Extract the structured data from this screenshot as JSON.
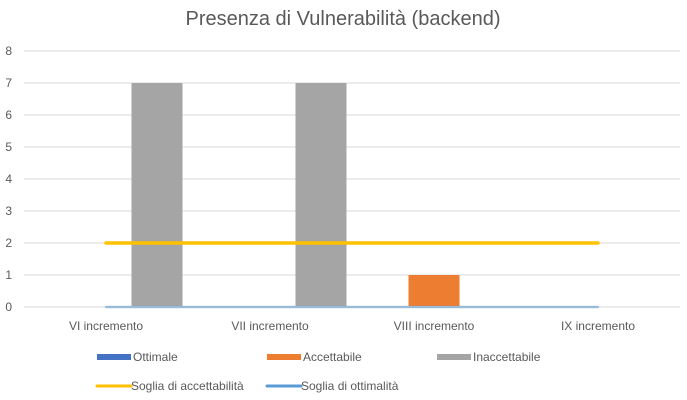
{
  "chart_data": {
    "type": "bar",
    "title": "Presenza di Vulnerabilità (backend)",
    "categories": [
      "VI incremento",
      "VII incremento",
      "VIII incremento",
      "IX incremento"
    ],
    "series": [
      {
        "name": "Ottimale",
        "kind": "bar",
        "color": "#4472C4",
        "values": [
          0,
          0,
          0,
          0
        ]
      },
      {
        "name": "Accettabile",
        "kind": "bar",
        "color": "#ED7D31",
        "values": [
          0,
          0,
          1,
          0
        ]
      },
      {
        "name": "Inaccettabile",
        "kind": "bar",
        "color": "#A5A5A5",
        "values": [
          7,
          7,
          0,
          0
        ]
      },
      {
        "name": "Soglia di accettabilità",
        "kind": "line",
        "color": "#FFC000",
        "values": [
          2,
          2,
          2,
          2
        ]
      },
      {
        "name": "Soglia di ottimalità",
        "kind": "line",
        "color": "#5B9BD5",
        "values": [
          0,
          0,
          0,
          0
        ]
      }
    ],
    "ylim": [
      0,
      8
    ],
    "yticks": [
      0,
      1,
      2,
      3,
      4,
      5,
      6,
      7,
      8
    ],
    "grid": true,
    "legend_position": "bottom"
  }
}
